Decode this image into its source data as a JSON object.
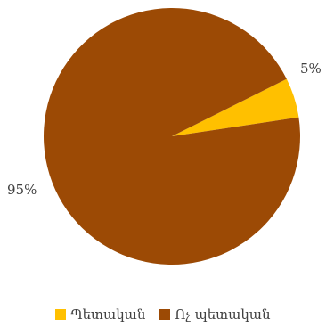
{
  "chart_data": {
    "type": "pie",
    "categories": [
      "Պետական",
      "Ոչ պետական"
    ],
    "values": [
      5,
      95
    ],
    "data_labels": [
      "5%",
      "95%"
    ],
    "colors": [
      "#ffc000",
      "#9c4a05"
    ],
    "start_angle_deg": 90,
    "direction": "clockwise",
    "legend_position": "bottom"
  },
  "legend": {
    "items": [
      {
        "label": "Պետական",
        "color": "#ffc000"
      },
      {
        "label": "Ոչ պետական",
        "color": "#9c4a05"
      }
    ]
  }
}
